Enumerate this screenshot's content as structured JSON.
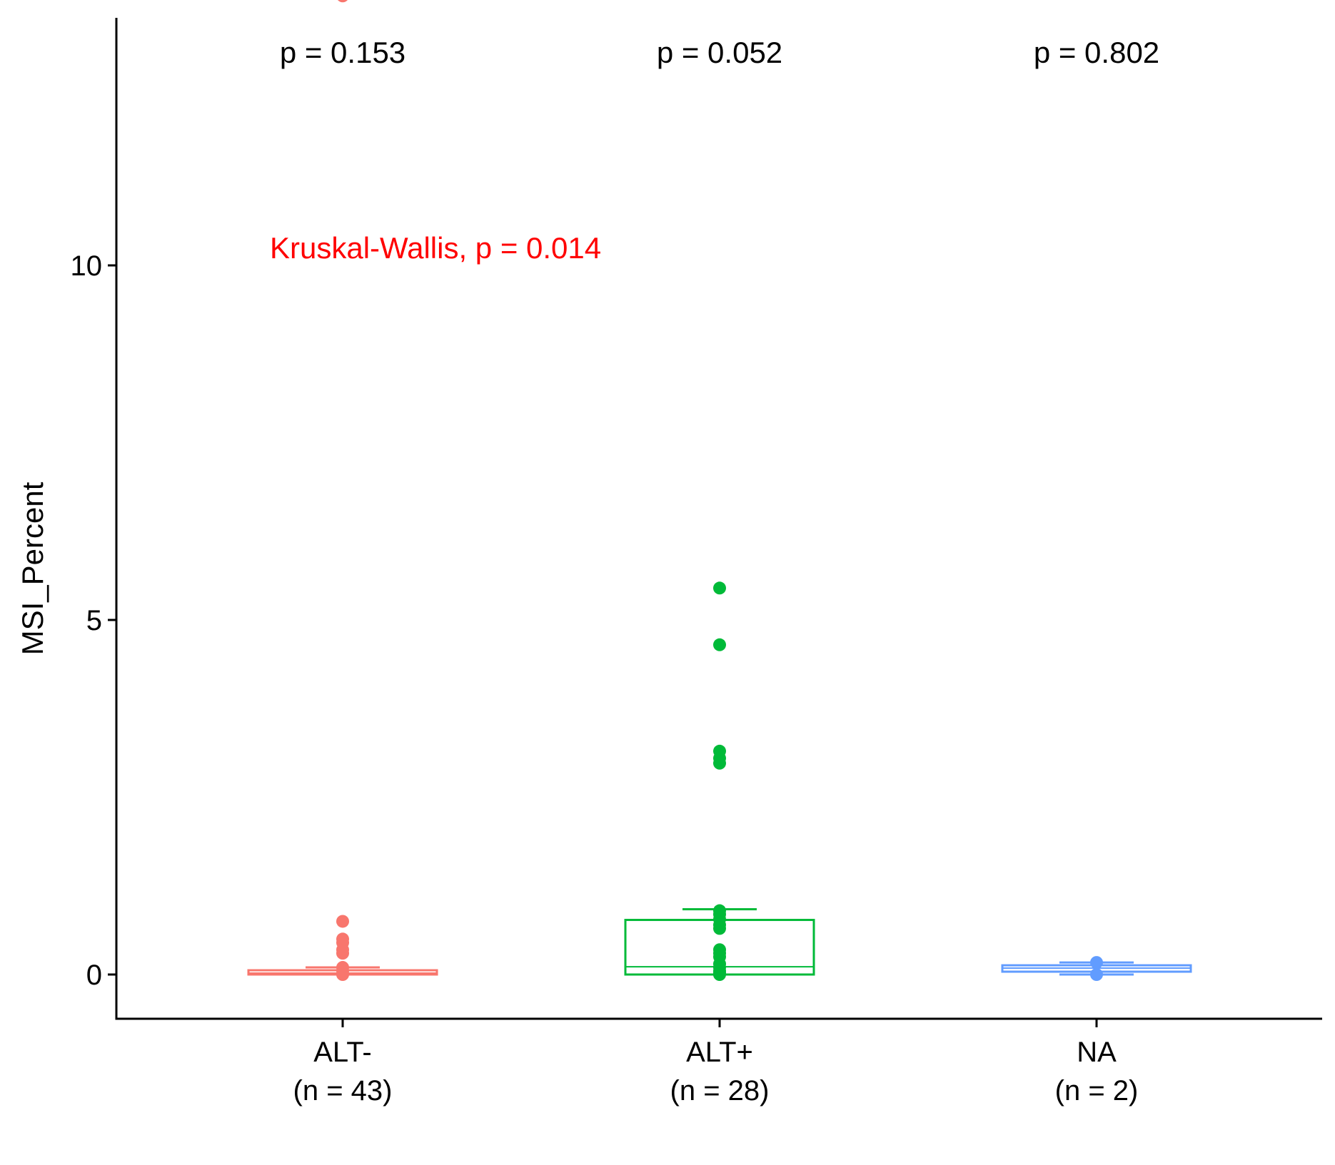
{
  "chart_data": {
    "type": "box",
    "title": "",
    "xlabel": "",
    "ylabel": "MSI_Percent",
    "ylim": [
      -0.63,
      14.1
    ],
    "yticks": [
      0,
      5,
      10
    ],
    "ytick_labels": [
      "0",
      "5",
      "10"
    ],
    "grid": false,
    "categories": [
      {
        "name": "ALT-",
        "n_label": "(n = 43)",
        "color": "#F8766D"
      },
      {
        "name": "ALT+",
        "n_label": "(n = 28)",
        "color": "#00BA38"
      },
      {
        "name": "NA",
        "n_label": "(n = 2)",
        "color": "#619CFF"
      }
    ],
    "boxes": [
      {
        "category": "ALT-",
        "min": 0,
        "q1": 0,
        "median": 0.02,
        "q3": 0.06,
        "max": 0.1,
        "outliers": [
          13.8,
          0.75,
          0.5,
          0.45,
          0.35,
          0.3,
          0.1,
          0.05,
          0
        ]
      },
      {
        "category": "ALT+",
        "min": 0,
        "q1": 0,
        "median": 0.11,
        "q3": 0.77,
        "max": 0.92,
        "outliers": [
          5.45,
          4.65,
          3.15,
          3.05,
          2.98,
          0.9,
          0.85,
          0.78,
          0.7,
          0.65,
          0.35,
          0.3,
          0.25,
          0.15,
          0.1,
          0.05,
          0.02,
          0
        ]
      },
      {
        "category": "NA",
        "min": 0,
        "q1": 0.04,
        "median": 0.09,
        "q3": 0.13,
        "max": 0.17,
        "outliers": [
          0.17,
          0.0
        ]
      }
    ],
    "pairwise_p": [
      "p = 0.153",
      "p = 0.052",
      "p = 0.802"
    ],
    "test_label": "Kruskal-Wallis, p = 0.014",
    "test_label_y": 10.2,
    "test_label_color": "#FF0000"
  }
}
